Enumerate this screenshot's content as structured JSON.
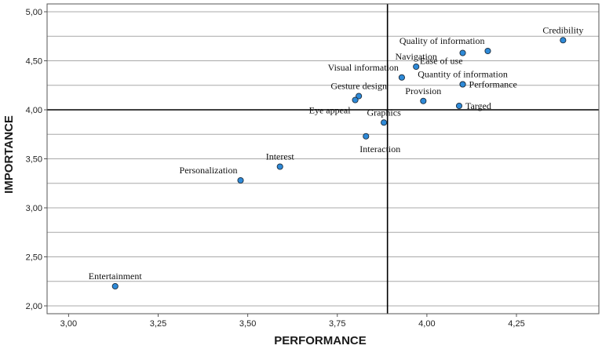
{
  "chart_data": {
    "type": "scatter",
    "xlabel": "PERFORMANCE",
    "ylabel": "IMPORTANCE",
    "xlim": [
      2.94,
      4.48
    ],
    "ylim": [
      1.92,
      5.08
    ],
    "x_ticks": [
      "3,00",
      "3,25",
      "3,50",
      "3,75",
      "4,00",
      "4,25"
    ],
    "x_tick_values": [
      3.0,
      3.25,
      3.5,
      3.75,
      4.0,
      4.25
    ],
    "y_ticks": [
      "2,00",
      "2,50",
      "3,00",
      "3,50",
      "4,00",
      "4,50",
      "5,00"
    ],
    "y_tick_values": [
      2.0,
      2.5,
      3.0,
      3.5,
      4.0,
      4.5,
      5.0
    ],
    "y_grid": [
      2.0,
      2.25,
      2.5,
      2.75,
      3.0,
      3.25,
      3.5,
      3.75,
      4.0,
      4.25,
      4.5,
      4.75,
      5.0
    ],
    "grid": "horizontal",
    "reference_lines": {
      "x": 3.89,
      "y": 4.0
    },
    "point_color": "#2e8ad8",
    "points": [
      {
        "label": "Credibility",
        "x": 4.38,
        "y": 4.71,
        "label_pos": "above"
      },
      {
        "label": "Quality  of information",
        "x": 4.17,
        "y": 4.6,
        "label_pos": "above-left"
      },
      {
        "label": "Ease of use",
        "x": 4.1,
        "y": 4.58,
        "label_pos": "below-left"
      },
      {
        "label": "Navigation",
        "x": 3.97,
        "y": 4.44,
        "label_pos": "above"
      },
      {
        "label": "Visual information",
        "x": 3.93,
        "y": 4.33,
        "label_pos": "above-left"
      },
      {
        "label": "Quantity  of information",
        "x": 4.1,
        "y": 4.26,
        "label_pos": "above"
      },
      {
        "label": "Performance",
        "x": 4.1,
        "y": 4.26,
        "label_pos": "right"
      },
      {
        "label": "Gesture design",
        "x": 3.81,
        "y": 4.14,
        "label_pos": "above"
      },
      {
        "label": "Eye appeal",
        "x": 3.8,
        "y": 4.1,
        "label_pos": "below"
      },
      {
        "label": "Provision",
        "x": 3.99,
        "y": 4.09,
        "label_pos": "above"
      },
      {
        "label": "Targed",
        "x": 4.09,
        "y": 4.04,
        "label_pos": "right"
      },
      {
        "label": "Graphics",
        "x": 3.88,
        "y": 3.87,
        "label_pos": "above"
      },
      {
        "label": "Interaction",
        "x": 3.83,
        "y": 3.73,
        "label_pos": "below-right"
      },
      {
        "label": "Interest",
        "x": 3.59,
        "y": 3.42,
        "label_pos": "above"
      },
      {
        "label": "Personalization",
        "x": 3.48,
        "y": 3.28,
        "label_pos": "above-left"
      },
      {
        "label": "Entertainment",
        "x": 3.13,
        "y": 2.2,
        "label_pos": "above"
      }
    ]
  }
}
